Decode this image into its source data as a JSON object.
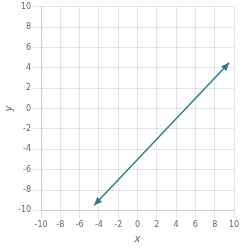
{
  "chart_data": {
    "type": "line",
    "x": [
      -4.5,
      9.5
    ],
    "values": [
      -9.5,
      4.5
    ],
    "color": "#2e7d8c",
    "marker": "arrow",
    "xlabel": "x",
    "ylabel": "y",
    "xlim": [
      -10,
      10
    ],
    "ylim": [
      -10,
      10
    ],
    "xticks": [
      -10,
      -8,
      -6,
      -4,
      -2,
      0,
      2,
      4,
      6,
      8,
      10
    ],
    "yticks": [
      -10,
      -8,
      -6,
      -4,
      -2,
      0,
      2,
      4,
      6,
      8,
      10
    ],
    "grid": true
  }
}
